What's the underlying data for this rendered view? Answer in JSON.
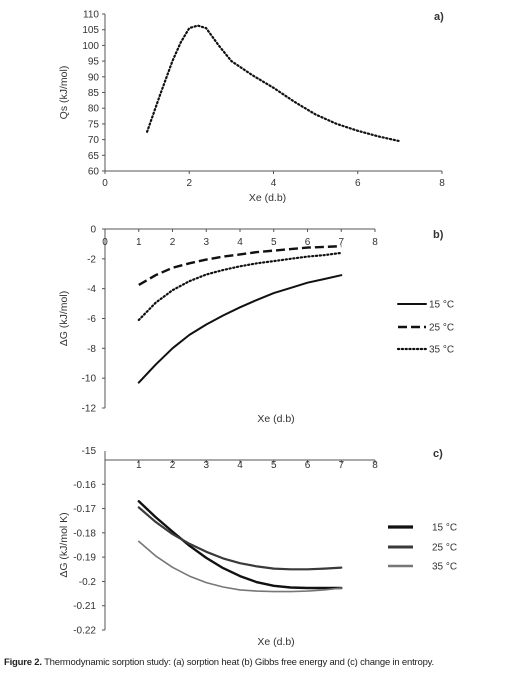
{
  "caption": {
    "label": "Figure 2.",
    "text": "Thermodynamic sorption study: (a) sorption heat (b) Gibbs free energy and (c) change in entropy."
  },
  "chart_data": [
    {
      "id": "a",
      "type": "line",
      "panel_label": "a)",
      "xlabel": "Xe (d.b)",
      "ylabel": "Qs (kJ/mol)",
      "xlim": [
        0,
        8
      ],
      "ylim": [
        60,
        110
      ],
      "xticks": [
        "0",
        "2",
        "4",
        "6",
        "8"
      ],
      "yticks": [
        "60",
        "65",
        "70",
        "75",
        "80",
        "85",
        "90",
        "95",
        "100",
        "105",
        "110"
      ],
      "grid": false,
      "series": [
        {
          "style": "dotted",
          "color": "#111111",
          "x": [
            1.0,
            1.3,
            1.6,
            1.8,
            2.0,
            2.2,
            2.4,
            2.7,
            3.0,
            3.5,
            4.0,
            4.5,
            5.0,
            5.5,
            6.0,
            6.5,
            7.0
          ],
          "y": [
            72.5,
            84,
            95,
            101,
            105.5,
            106.3,
            105.5,
            100,
            95,
            90.5,
            86.5,
            82,
            78,
            75,
            72.8,
            71,
            69.5
          ]
        }
      ]
    },
    {
      "id": "b",
      "type": "line",
      "panel_label": "b)",
      "xlabel": "Xe (d.b)",
      "ylabel": "ΔG (kJ/mol)",
      "xlim": [
        0,
        8
      ],
      "ylim": [
        -12,
        0
      ],
      "xticks": [
        "0",
        "1",
        "2",
        "3",
        "4",
        "5",
        "6",
        "7",
        "8"
      ],
      "yticks": [
        "0",
        "-2",
        "-4",
        "-6",
        "-8",
        "-10",
        "-12"
      ],
      "grid": false,
      "legend_position": "right",
      "series": [
        {
          "name": "15 °C",
          "style": "solid",
          "color": "#111111",
          "x": [
            1,
            1.5,
            2,
            2.5,
            3,
            3.5,
            4,
            4.5,
            5,
            5.5,
            6,
            6.5,
            7
          ],
          "y": [
            -10.3,
            -9.1,
            -8.0,
            -7.1,
            -6.4,
            -5.8,
            -5.25,
            -4.75,
            -4.3,
            -3.95,
            -3.6,
            -3.35,
            -3.1
          ]
        },
        {
          "name": "25 °C",
          "style": "dashed",
          "color": "#111111",
          "x": [
            1,
            1.5,
            2,
            2.5,
            3,
            3.5,
            4,
            4.5,
            5,
            5.5,
            6,
            6.5,
            7
          ],
          "y": [
            -3.75,
            -3.1,
            -2.6,
            -2.3,
            -2.05,
            -1.85,
            -1.7,
            -1.55,
            -1.45,
            -1.35,
            -1.25,
            -1.2,
            -1.15
          ]
        },
        {
          "name": "35 °C",
          "style": "dotted",
          "color": "#111111",
          "x": [
            1,
            1.5,
            2,
            2.5,
            3,
            3.5,
            4,
            4.5,
            5,
            5.5,
            6,
            6.5,
            7
          ],
          "y": [
            -6.1,
            -4.95,
            -4.1,
            -3.5,
            -3.05,
            -2.75,
            -2.5,
            -2.3,
            -2.15,
            -2.0,
            -1.85,
            -1.75,
            -1.6
          ]
        }
      ]
    },
    {
      "id": "c",
      "type": "line",
      "panel_label": "c)",
      "xlabel": "Xe (d.b)",
      "ylabel": "ΔG (kJ/mol K)",
      "xlim": [
        0,
        8
      ],
      "ylim": [
        -0.22,
        -0.15
      ],
      "x_axis_label_top": "-15",
      "xticks": [
        "1",
        "2",
        "3",
        "4",
        "5",
        "6",
        "7",
        "8"
      ],
      "yticks": [
        "-0.16",
        "-0.17",
        "-0.18",
        "-0.19",
        "-0.2",
        "-0.21",
        "-0.22"
      ],
      "grid": false,
      "legend_position": "right",
      "series": [
        {
          "name": "15 °C",
          "style": "solid-thick",
          "color": "#111111",
          "x": [
            1,
            1.5,
            2,
            2.5,
            3,
            3.5,
            4,
            4.5,
            5,
            5.5,
            6,
            6.5,
            7
          ],
          "y": [
            -0.167,
            -0.1735,
            -0.1795,
            -0.1853,
            -0.1903,
            -0.1945,
            -0.1978,
            -0.2003,
            -0.2018,
            -0.2025,
            -0.2027,
            -0.2027,
            -0.2027
          ]
        },
        {
          "name": "25 °C",
          "style": "solid-medium",
          "color": "#3a3a3a",
          "x": [
            1,
            1.5,
            2,
            2.5,
            3,
            3.5,
            4,
            4.5,
            5,
            5.5,
            6,
            6.5,
            7
          ],
          "y": [
            -0.1695,
            -0.1755,
            -0.1805,
            -0.1845,
            -0.1878,
            -0.1905,
            -0.1925,
            -0.1938,
            -0.1947,
            -0.195,
            -0.195,
            -0.1947,
            -0.1943
          ]
        },
        {
          "name": "35 °C",
          "style": "solid-thin",
          "color": "#777777",
          "x": [
            1,
            1.5,
            2,
            2.5,
            3,
            3.5,
            4,
            4.5,
            5,
            5.5,
            6,
            6.5,
            7
          ],
          "y": [
            -0.1835,
            -0.1895,
            -0.1942,
            -0.1978,
            -0.2005,
            -0.2023,
            -0.2035,
            -0.204,
            -0.2042,
            -0.2042,
            -0.204,
            -0.2035,
            -0.2027
          ]
        }
      ]
    }
  ]
}
